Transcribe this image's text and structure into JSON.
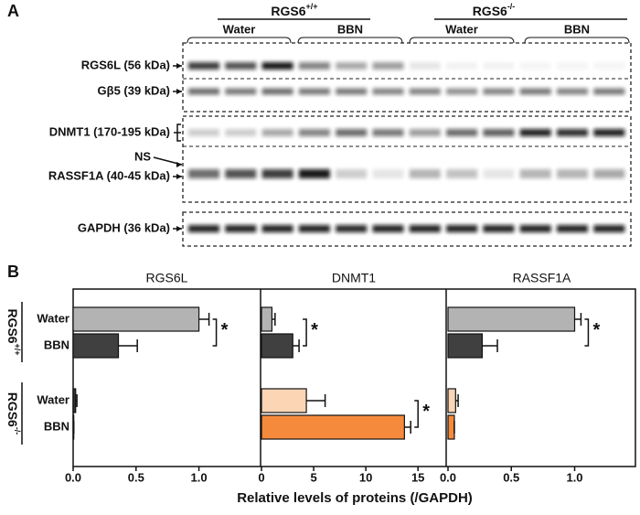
{
  "panel_a": {
    "label": "A",
    "genotypes": [
      {
        "name": "RGS6",
        "sup": "+/+"
      },
      {
        "name": "RGS6",
        "sup": "-/-"
      }
    ],
    "treatments": [
      "Water",
      "BBN",
      "Water",
      "BBN"
    ],
    "rows": [
      "RGS6L (56 kDa)",
      "Gβ5 (39 kDa)",
      "DNMT1 (170-195 kDa)",
      "NS",
      "RASSF1A (40-45 kDa)",
      "GAPDH (36 kDa)"
    ]
  },
  "panel_b": {
    "label": "B",
    "xlabel": "Relative levels of proteins (/GAPDH)",
    "categories": [
      "Water",
      "BBN",
      "Water",
      "BBN"
    ],
    "groups": [
      {
        "name": "RGS6",
        "sup": "+/+"
      },
      {
        "name": "RGS6",
        "sup": "-/-"
      }
    ]
  },
  "chart_data": [
    {
      "type": "bar",
      "title": "RGS6L",
      "values": [
        1.0,
        0.36,
        0.02,
        0.005
      ],
      "errors": [
        0.08,
        0.15,
        0.01,
        0.0
      ],
      "colors": [
        "#b3b3b3",
        "#404040",
        "#333333",
        "#333333"
      ],
      "xlim": [
        0,
        1.49
      ],
      "xticks": [
        {
          "value": 0,
          "label": "0.0"
        },
        0.5,
        {
          "value": 1,
          "label": "1.0"
        }
      ],
      "significance": [
        "*"
      ]
    },
    {
      "type": "bar",
      "title": "DNMT1",
      "values": [
        1.0,
        3.0,
        4.3,
        13.7
      ],
      "errors": [
        0.3,
        0.6,
        1.8,
        0.6
      ],
      "colors": [
        "#b3b3b3",
        "#404040",
        "#fcd5b5",
        "#f58a3c"
      ],
      "xlim": [
        0,
        17.7
      ],
      "xticks": [
        0,
        5,
        10,
        15
      ],
      "significance": [
        "*",
        "*"
      ]
    },
    {
      "type": "bar",
      "title": "RASSF1A",
      "values": [
        1.0,
        0.27,
        0.06,
        0.05
      ],
      "errors": [
        0.05,
        0.12,
        0.02,
        0.0
      ],
      "colors": [
        "#b3b3b3",
        "#404040",
        "#fcd5b5",
        "#f58a3c"
      ],
      "xlim": [
        0,
        1.48
      ],
      "xticks": [
        {
          "value": 0,
          "label": "0.0"
        },
        0.5,
        {
          "value": 1,
          "label": "1.0"
        }
      ],
      "significance": [
        "*"
      ]
    }
  ]
}
